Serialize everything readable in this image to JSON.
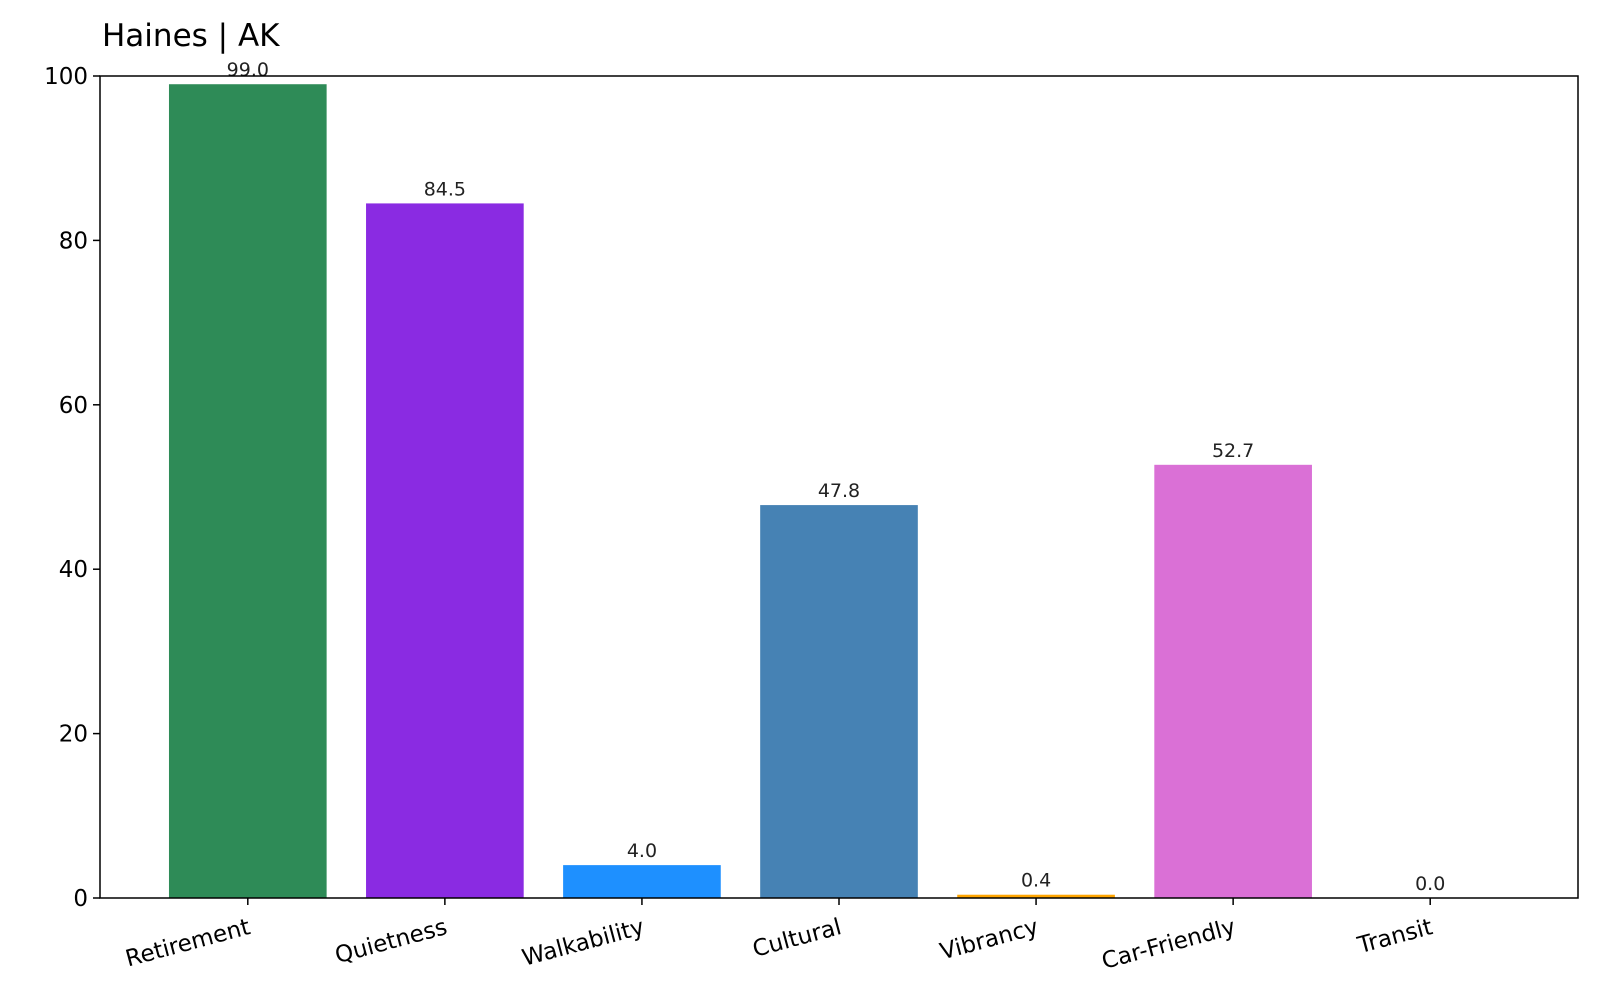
{
  "chart_data": {
    "type": "bar",
    "title": "Haines | AK",
    "categories": [
      "Retirement",
      "Quietness",
      "Walkability",
      "Cultural",
      "Vibrancy",
      "Car-Friendly",
      "Transit"
    ],
    "values": [
      99.0,
      84.5,
      4.0,
      47.8,
      0.4,
      52.7,
      0.0
    ],
    "value_labels": [
      "99.0",
      "84.5",
      "4.0",
      "47.8",
      "0.4",
      "52.7",
      "0.0"
    ],
    "colors": [
      "#2e8b57",
      "#8a2be2",
      "#1e90ff",
      "#4682b4",
      "#ffa500",
      "#da70d6",
      "#20b2aa"
    ],
    "ylim": [
      0,
      100
    ],
    "yticks": [
      0,
      20,
      40,
      60,
      80,
      100
    ],
    "grid": false
  }
}
